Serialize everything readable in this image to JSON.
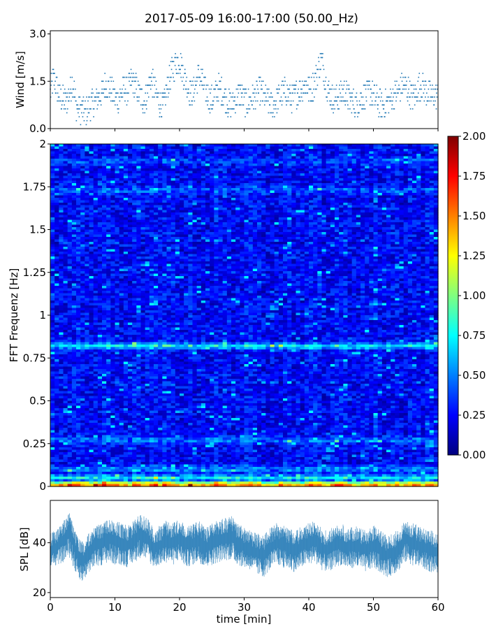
{
  "title": "2017-05-09 16:00-17:00 (50.00_Hz)",
  "chart_data": [
    {
      "id": "wind",
      "type": "scatter",
      "ylabel": "Wind [m/s]",
      "xlim": [
        0,
        60
      ],
      "ylim": [
        0,
        3.1
      ],
      "yticks": [
        "0.0",
        "1.5",
        "3.0"
      ],
      "ytick_values": [
        0,
        1.5,
        3.0
      ],
      "color": "#1f77b4",
      "series": [
        {
          "x": [
            0,
            0.5,
            1,
            1.5,
            2,
            2.5,
            3,
            3.5,
            4,
            4.5,
            5,
            5.5,
            6,
            6.5,
            7,
            7.5,
            8,
            8.5,
            9,
            9.5,
            10,
            10.5,
            11,
            11.5,
            12,
            12.5,
            13,
            13.5,
            14,
            14.5,
            15,
            15.5,
            16,
            16.5,
            17,
            17.5,
            18,
            18.5,
            19,
            19.5,
            20,
            20.5,
            21,
            21.5,
            22,
            22.5,
            23,
            23.5,
            24,
            24.5,
            25,
            25.5,
            26,
            26.5,
            27,
            27.5,
            28,
            28.5,
            29,
            29.5,
            30,
            30.5,
            31,
            31.5,
            32,
            32.5,
            33,
            33.5,
            34,
            34.5,
            35,
            35.5,
            36,
            36.5,
            37,
            37.5,
            38,
            38.5,
            39,
            39.5,
            40,
            40.5,
            41,
            41.5,
            42,
            42.5,
            43,
            43.5,
            44,
            44.5,
            45,
            45.5,
            46,
            46.5,
            47,
            47.5,
            48,
            48.5,
            49,
            49.5,
            50,
            50.5,
            51,
            51.5,
            52,
            52.5,
            53,
            53.5,
            54,
            54.5,
            55,
            55.5,
            56,
            56.5,
            57,
            57.5,
            58,
            58.5,
            59,
            59.5,
            60
          ],
          "y": [
            1.1,
            1.6,
            1.3,
            1.0,
            0.9,
            0.8,
            1.2,
            1.5,
            0.7,
            0.6,
            0.6,
            0.5,
            0.7,
            0.8,
            0.9,
            1.0,
            1.1,
            1.4,
            1.3,
            1.2,
            1.0,
            0.9,
            1.1,
            1.3,
            1.2,
            1.5,
            1.4,
            1.2,
            1.0,
            0.9,
            1.1,
            1.6,
            1.3,
            1.0,
            0.8,
            0.7,
            1.2,
            1.6,
            1.9,
            2.1,
            2.2,
            1.8,
            1.5,
            1.2,
            1.1,
            1.4,
            1.7,
            1.5,
            1.2,
            1.0,
            0.9,
            1.1,
            1.3,
            1.2,
            1.0,
            0.8,
            0.7,
            0.9,
            1.0,
            1.1,
            0.9,
            0.8,
            0.9,
            1.0,
            1.1,
            1.2,
            1.0,
            0.9,
            0.8,
            0.7,
            0.9,
            1.0,
            1.1,
            1.2,
            1.0,
            0.9,
            1.1,
            1.2,
            1.3,
            1.4,
            1.2,
            1.3,
            1.5,
            1.9,
            2.2,
            1.6,
            1.2,
            1.0,
            0.9,
            1.0,
            1.1,
            1.2,
            1.0,
            0.9,
            0.8,
            0.8,
            0.9,
            1.0,
            1.1,
            1.2,
            1.0,
            0.9,
            0.8,
            0.7,
            0.8,
            0.9,
            1.0,
            1.1,
            1.2,
            1.4,
            1.3,
            1.2,
            1.0,
            1.1,
            1.3,
            1.4,
            1.2,
            1.1,
            1.0,
            1.1,
            1.0
          ]
        }
      ]
    },
    {
      "id": "spectrogram",
      "type": "heatmap",
      "ylabel": "FFT Frequenz [Hz]",
      "xlim": [
        0,
        60
      ],
      "ylim": [
        0,
        2
      ],
      "yticks": [
        "0",
        "0.25",
        "0.5",
        "0.75",
        "1",
        "1.25",
        "1.5",
        "1.75",
        "2"
      ],
      "ytick_values": [
        0,
        0.25,
        0.5,
        0.75,
        1,
        1.25,
        1.5,
        1.75,
        2
      ],
      "colormap": "jet",
      "clim": [
        0,
        2
      ],
      "colorbar_ticks": [
        "0.00",
        "0.25",
        "0.50",
        "0.75",
        "1.00",
        "1.25",
        "1.50",
        "1.75",
        "2.00"
      ],
      "colorbar_tick_values": [
        0,
        0.25,
        0.5,
        0.75,
        1.0,
        1.25,
        1.5,
        1.75,
        2.0
      ],
      "bands": [
        {
          "f": 0.01,
          "level": 1.6
        },
        {
          "f": 0.05,
          "level": 0.75
        },
        {
          "f": 0.1,
          "level": 0.55
        },
        {
          "f": 0.27,
          "level": 0.5
        },
        {
          "f": 0.82,
          "level": 0.75
        },
        {
          "f": 1.73,
          "level": 0.45
        },
        {
          "f": 1.9,
          "level": 0.4
        }
      ],
      "background_level": 0.25
    },
    {
      "id": "spl",
      "type": "area",
      "ylabel": "SPL [dB]",
      "xlabel": "time [min]",
      "xlim": [
        0,
        60
      ],
      "ylim": [
        18,
        57
      ],
      "yticks": [
        "20",
        "40"
      ],
      "ytick_values": [
        20,
        40
      ],
      "xticks": [
        "0",
        "10",
        "20",
        "30",
        "40",
        "50",
        "60"
      ],
      "xtick_values": [
        0,
        10,
        20,
        30,
        40,
        50,
        60
      ],
      "color": "#1f77b4",
      "series": [
        {
          "x": [
            0,
            1,
            2,
            3,
            4,
            5,
            6,
            7,
            8,
            9,
            10,
            11,
            12,
            13,
            14,
            15,
            16,
            17,
            18,
            19,
            20,
            21,
            22,
            23,
            24,
            25,
            26,
            27,
            28,
            29,
            30,
            31,
            32,
            33,
            34,
            35,
            36,
            37,
            38,
            39,
            40,
            41,
            42,
            43,
            44,
            45,
            46,
            47,
            48,
            49,
            50,
            51,
            52,
            53,
            54,
            55,
            56,
            57,
            58,
            59,
            60
          ],
          "mean": [
            37,
            38,
            41,
            45,
            36,
            33,
            36,
            39,
            40,
            42,
            41,
            40,
            39,
            41,
            44,
            42,
            38,
            39,
            41,
            40,
            42,
            39,
            40,
            41,
            38,
            40,
            41,
            42,
            43,
            40,
            38,
            37,
            36,
            35,
            38,
            40,
            39,
            38,
            37,
            39,
            40,
            41,
            38,
            37,
            39,
            40,
            38,
            39,
            38,
            37,
            39,
            37,
            35,
            36,
            38,
            42,
            40,
            39,
            38,
            37,
            36
          ],
          "low": [
            30,
            31,
            32,
            34,
            27,
            24,
            28,
            30,
            31,
            32,
            31,
            31,
            30,
            32,
            34,
            33,
            30,
            31,
            32,
            31,
            33,
            30,
            31,
            32,
            30,
            31,
            32,
            33,
            33,
            31,
            30,
            29,
            27,
            26,
            29,
            31,
            30,
            29,
            28,
            30,
            31,
            32,
            29,
            28,
            30,
            31,
            29,
            30,
            29,
            28,
            30,
            28,
            26,
            27,
            29,
            32,
            31,
            30,
            29,
            28,
            28
          ],
          "high": [
            44,
            45,
            49,
            52,
            44,
            41,
            44,
            47,
            48,
            50,
            49,
            48,
            47,
            49,
            52,
            50,
            46,
            47,
            49,
            48,
            50,
            47,
            48,
            49,
            46,
            48,
            49,
            50,
            51,
            48,
            46,
            45,
            44,
            43,
            46,
            48,
            47,
            46,
            45,
            47,
            48,
            49,
            46,
            45,
            47,
            48,
            46,
            47,
            46,
            45,
            47,
            45,
            43,
            44,
            46,
            50,
            48,
            47,
            46,
            45,
            44
          ]
        }
      ]
    }
  ]
}
